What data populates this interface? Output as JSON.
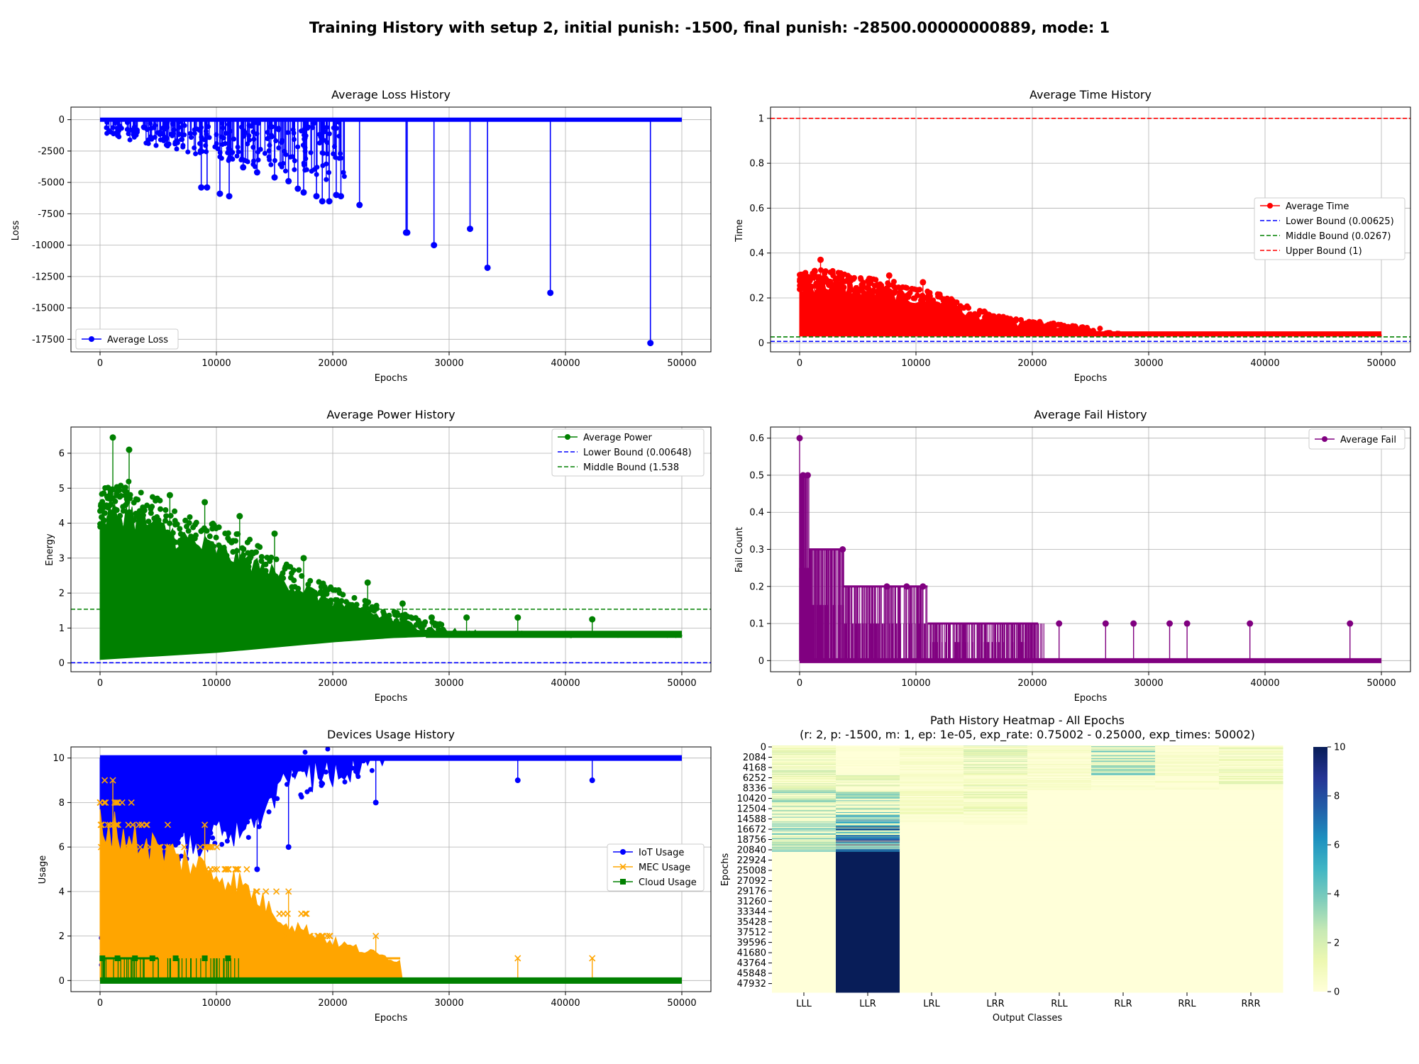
{
  "figure": {
    "title": "Training History with setup 2, initial punish: -1500, final punish: -28500.00000000889, mode: 1"
  },
  "chart_data": [
    {
      "id": "loss",
      "type": "line",
      "title": "Average Loss History",
      "xlabel": "Epochs",
      "ylabel": "Loss",
      "xlim": [
        -2500,
        52500
      ],
      "ylim": [
        -18500,
        1000
      ],
      "xticks": [
        0,
        10000,
        20000,
        30000,
        40000,
        50000
      ],
      "yticks": [
        0,
        -2500,
        -5000,
        -7500,
        -10000,
        -12500,
        -15000,
        -17500
      ],
      "legend_position": "lower left",
      "grid": true,
      "series": [
        {
          "name": "Average Loss",
          "color": "#0000ff",
          "marker": "circle",
          "baseline": 0,
          "x_extent": [
            0,
            50000
          ],
          "spikes": [
            {
              "x": 8700,
              "y": -5400
            },
            {
              "x": 9200,
              "y": -5400
            },
            {
              "x": 10300,
              "y": -5900
            },
            {
              "x": 11100,
              "y": -6100
            },
            {
              "x": 12300,
              "y": -3800
            },
            {
              "x": 13500,
              "y": -4200
            },
            {
              "x": 15000,
              "y": -4600
            },
            {
              "x": 16200,
              "y": -4900
            },
            {
              "x": 17000,
              "y": -5500
            },
            {
              "x": 17500,
              "y": -5800
            },
            {
              "x": 18600,
              "y": -6100
            },
            {
              "x": 19100,
              "y": -6500
            },
            {
              "x": 19700,
              "y": -6500
            },
            {
              "x": 20300,
              "y": -6000
            },
            {
              "x": 20700,
              "y": -6100
            },
            {
              "x": 22300,
              "y": -6800
            },
            {
              "x": 26300,
              "y": -9000
            },
            {
              "x": 26400,
              "y": -9000
            },
            {
              "x": 28700,
              "y": -10000
            },
            {
              "x": 31800,
              "y": -8700
            },
            {
              "x": 33300,
              "y": -11800
            },
            {
              "x": 38700,
              "y": -13800
            },
            {
              "x": 47300,
              "y": -17800
            }
          ]
        }
      ]
    },
    {
      "id": "time",
      "type": "line",
      "title": "Average Time History",
      "xlabel": "Epochs",
      "ylabel": "Time",
      "xlim": [
        -2500,
        52500
      ],
      "ylim": [
        -0.04,
        1.05
      ],
      "xticks": [
        0,
        10000,
        20000,
        30000,
        40000,
        50000
      ],
      "yticks": [
        0.0,
        0.2,
        0.4,
        0.6,
        0.8,
        1.0
      ],
      "legend_position": "center right",
      "grid": true,
      "series": [
        {
          "name": "Average Time",
          "color": "#ff0000",
          "marker": "circle",
          "envelope": [
            [
              0,
              0.28
            ],
            [
              2000,
              0.3
            ],
            [
              5000,
              0.27
            ],
            [
              8000,
              0.25
            ],
            [
              10000,
              0.22
            ],
            [
              12000,
              0.2
            ],
            [
              15000,
              0.14
            ],
            [
              18000,
              0.1
            ],
            [
              20000,
              0.09
            ],
            [
              22000,
              0.08
            ],
            [
              25000,
              0.06
            ],
            [
              30000,
              0.05
            ],
            [
              40000,
              0.045
            ],
            [
              50000,
              0.04
            ]
          ],
          "floor": 0.03,
          "peaks": [
            {
              "x": 1800,
              "y": 0.37
            },
            {
              "x": 1300,
              "y": 0.32
            },
            {
              "x": 7700,
              "y": 0.3
            },
            {
              "x": 10600,
              "y": 0.27
            },
            {
              "x": 4300,
              "y": 0.29
            }
          ]
        },
        {
          "name": "Lower Bound (0.00625)",
          "color": "#0000ff",
          "line": "dashed",
          "value": 0.00625
        },
        {
          "name": "Middle Bound (0.0267)",
          "color": "#008000",
          "line": "dashed",
          "value": 0.0267
        },
        {
          "name": "Upper Bound (1)",
          "color": "#ff0000",
          "line": "dashed",
          "value": 1.0
        }
      ]
    },
    {
      "id": "power",
      "type": "line",
      "title": "Average Power History",
      "xlabel": "Epochs",
      "ylabel": "Energy",
      "xlim": [
        -2500,
        52500
      ],
      "ylim": [
        -0.25,
        6.75
      ],
      "xticks": [
        0,
        10000,
        20000,
        30000,
        40000,
        50000
      ],
      "yticks": [
        0,
        1,
        2,
        3,
        4,
        5,
        6
      ],
      "legend_position": "upper right",
      "grid": true,
      "series": [
        {
          "name": "Average Power",
          "color": "#008000",
          "marker": "circle",
          "envelope": [
            [
              0,
              4.5
            ],
            [
              2000,
              4.8
            ],
            [
              5000,
              4.3
            ],
            [
              8000,
              3.8
            ],
            [
              10000,
              3.6
            ],
            [
              13000,
              3.2
            ],
            [
              16000,
              2.6
            ],
            [
              19000,
              2.1
            ],
            [
              22000,
              1.7
            ],
            [
              25000,
              1.4
            ],
            [
              28000,
              1.1
            ],
            [
              32000,
              0.95
            ],
            [
              40000,
              0.9
            ],
            [
              50000,
              0.9
            ]
          ],
          "lower": [
            [
              0,
              0.1
            ],
            [
              5000,
              0.2
            ],
            [
              10000,
              0.3
            ],
            [
              15000,
              0.45
            ],
            [
              20000,
              0.6
            ],
            [
              25000,
              0.72
            ],
            [
              30000,
              0.78
            ],
            [
              50000,
              0.8
            ]
          ],
          "peaks": [
            {
              "x": 1100,
              "y": 6.45
            },
            {
              "x": 2500,
              "y": 6.1
            },
            {
              "x": 6000,
              "y": 4.8
            },
            {
              "x": 9000,
              "y": 4.6
            },
            {
              "x": 12000,
              "y": 4.2
            },
            {
              "x": 15000,
              "y": 3.7
            },
            {
              "x": 17500,
              "y": 3.0
            },
            {
              "x": 23000,
              "y": 2.3
            },
            {
              "x": 26000,
              "y": 1.7
            },
            {
              "x": 28500,
              "y": 1.3
            },
            {
              "x": 31500,
              "y": 1.3
            },
            {
              "x": 35900,
              "y": 1.3
            },
            {
              "x": 42300,
              "y": 1.25
            }
          ]
        },
        {
          "name": "Lower Bound (0.00648)",
          "color": "#0000ff",
          "line": "dashed",
          "value": 0.00648
        },
        {
          "name": "Middle Bound (1.538",
          "color": "#008000",
          "line": "dashed",
          "value": 1.538
        }
      ]
    },
    {
      "id": "fail",
      "type": "line",
      "title": "Average Fail History",
      "xlabel": "Epochs",
      "ylabel": "Fail Count",
      "xlim": [
        -2500,
        52500
      ],
      "ylim": [
        -0.03,
        0.63
      ],
      "xticks": [
        0,
        10000,
        20000,
        30000,
        40000,
        50000
      ],
      "yticks": [
        0.0,
        0.1,
        0.2,
        0.3,
        0.4,
        0.5,
        0.6
      ],
      "legend_position": "upper right",
      "grid": true,
      "series": [
        {
          "name": "Average Fail",
          "color": "#800080",
          "marker": "circle",
          "plateaus": [
            [
              0,
              0.5
            ],
            [
              800,
              0.3
            ],
            [
              3800,
              0.2
            ],
            [
              11000,
              0.1
            ],
            [
              20500,
              0.1
            ]
          ],
          "peaks": [
            {
              "x": 0,
              "y": 0.6
            },
            {
              "x": 300,
              "y": 0.5
            },
            {
              "x": 700,
              "y": 0.5
            },
            {
              "x": 3700,
              "y": 0.3
            },
            {
              "x": 7500,
              "y": 0.2
            },
            {
              "x": 9200,
              "y": 0.2
            },
            {
              "x": 10600,
              "y": 0.2
            },
            {
              "x": 22300,
              "y": 0.1
            },
            {
              "x": 26300,
              "y": 0.1
            },
            {
              "x": 28700,
              "y": 0.1
            },
            {
              "x": 31800,
              "y": 0.1
            },
            {
              "x": 33300,
              "y": 0.1
            },
            {
              "x": 38700,
              "y": 0.1
            },
            {
              "x": 47300,
              "y": 0.1
            }
          ]
        }
      ]
    },
    {
      "id": "devices",
      "type": "line",
      "title": "Devices Usage History",
      "xlabel": "Epochs",
      "ylabel": "Usage",
      "xlim": [
        -2500,
        52500
      ],
      "ylim": [
        -0.5,
        10.5
      ],
      "xticks": [
        0,
        10000,
        20000,
        30000,
        40000,
        50000
      ],
      "yticks": [
        0,
        2,
        4,
        6,
        8,
        10
      ],
      "legend_position": "center right",
      "grid": true,
      "series": [
        {
          "name": "IoT Usage",
          "color": "#0000ff",
          "marker": "circle",
          "top": 10,
          "lower": [
            [
              0,
              0
            ],
            [
              6000,
              5
            ],
            [
              12000,
              6
            ],
            [
              16000,
              8
            ],
            [
              22000,
              9
            ],
            [
              26000,
              10
            ],
            [
              50000,
              10
            ]
          ],
          "dips": [
            {
              "x": 13500,
              "y": 5
            },
            {
              "x": 16200,
              "y": 6
            },
            {
              "x": 23700,
              "y": 8
            },
            {
              "x": 35900,
              "y": 9
            },
            {
              "x": 42300,
              "y": 9
            }
          ]
        },
        {
          "name": "MEC Usage",
          "color": "#ffa500",
          "marker": "x",
          "upper": [
            [
              0,
              8
            ],
            [
              4000,
              7
            ],
            [
              8000,
              6
            ],
            [
              12000,
              5
            ],
            [
              16000,
              3
            ],
            [
              20000,
              2
            ],
            [
              25800,
              1
            ],
            [
              26000,
              0
            ]
          ],
          "peaks": [
            {
              "x": 1100,
              "y": 9
            },
            {
              "x": 9000,
              "y": 7
            },
            {
              "x": 16200,
              "y": 4
            },
            {
              "x": 23700,
              "y": 2
            },
            {
              "x": 35900,
              "y": 1
            },
            {
              "x": 42300,
              "y": 1
            }
          ]
        },
        {
          "name": "Cloud Usage",
          "color": "#008000",
          "marker": "square",
          "value": 0,
          "peaks": [
            {
              "x": 200,
              "y": 1
            },
            {
              "x": 1500,
              "y": 1
            },
            {
              "x": 3000,
              "y": 1
            },
            {
              "x": 4500,
              "y": 1
            },
            {
              "x": 6500,
              "y": 1
            },
            {
              "x": 9000,
              "y": 1
            },
            {
              "x": 11000,
              "y": 1
            }
          ]
        }
      ]
    },
    {
      "id": "heatmap",
      "type": "heatmap",
      "title": "Path History Heatmap - All Epochs",
      "subtitle": "(r: 2, p: -1500, m: 1, ep: 1e-05, exp_rate: 0.75002 - 0.25000, exp_times: 50002)",
      "xlabel": "Output Classes",
      "ylabel": "Epochs",
      "categories": [
        "LLL",
        "LLR",
        "LRL",
        "LRR",
        "RLL",
        "RLR",
        "RRL",
        "RRR"
      ],
      "yticks": [
        "0",
        "2084",
        "4168",
        "6252",
        "8336",
        "10420",
        "12504",
        "14588",
        "16672",
        "18756",
        "20840",
        "22924",
        "25008",
        "27092",
        "29176",
        "31260",
        "33344",
        "35428",
        "37512",
        "39596",
        "41680",
        "43764",
        "45848",
        "47932"
      ],
      "colorbar": {
        "min": 0,
        "max": 10,
        "ticks": [
          0,
          2,
          4,
          6,
          8,
          10
        ],
        "colormap": "YlGnBu"
      },
      "epoch_count": 50000,
      "row_bands": [
        {
          "from": 0,
          "to": 6000,
          "values": [
            1.5,
            0.2,
            0.6,
            1.8,
            0.6,
            3.0,
            0.6,
            1.2
          ]
        },
        {
          "from": 6000,
          "to": 9000,
          "values": [
            1.4,
            1.5,
            0.5,
            1.5,
            0.5,
            0.4,
            0.6,
            1.3
          ]
        },
        {
          "from": 9000,
          "to": 14000,
          "values": [
            2.6,
            3.0,
            0.9,
            1.2,
            0.0,
            0.0,
            0.0,
            0.0
          ]
        },
        {
          "from": 14000,
          "to": 16000,
          "values": [
            2.7,
            4.5,
            0.3,
            0.4,
            0.0,
            0.0,
            0.0,
            0.0
          ]
        },
        {
          "from": 16000,
          "to": 21500,
          "values": [
            3.2,
            6.5,
            0.0,
            0.0,
            0.0,
            0.0,
            0.0,
            0.0
          ]
        },
        {
          "from": 21500,
          "to": 50000,
          "values": [
            0.0,
            10.0,
            0.0,
            0.0,
            0.0,
            0.0,
            0.0,
            0.0
          ]
        }
      ]
    }
  ]
}
